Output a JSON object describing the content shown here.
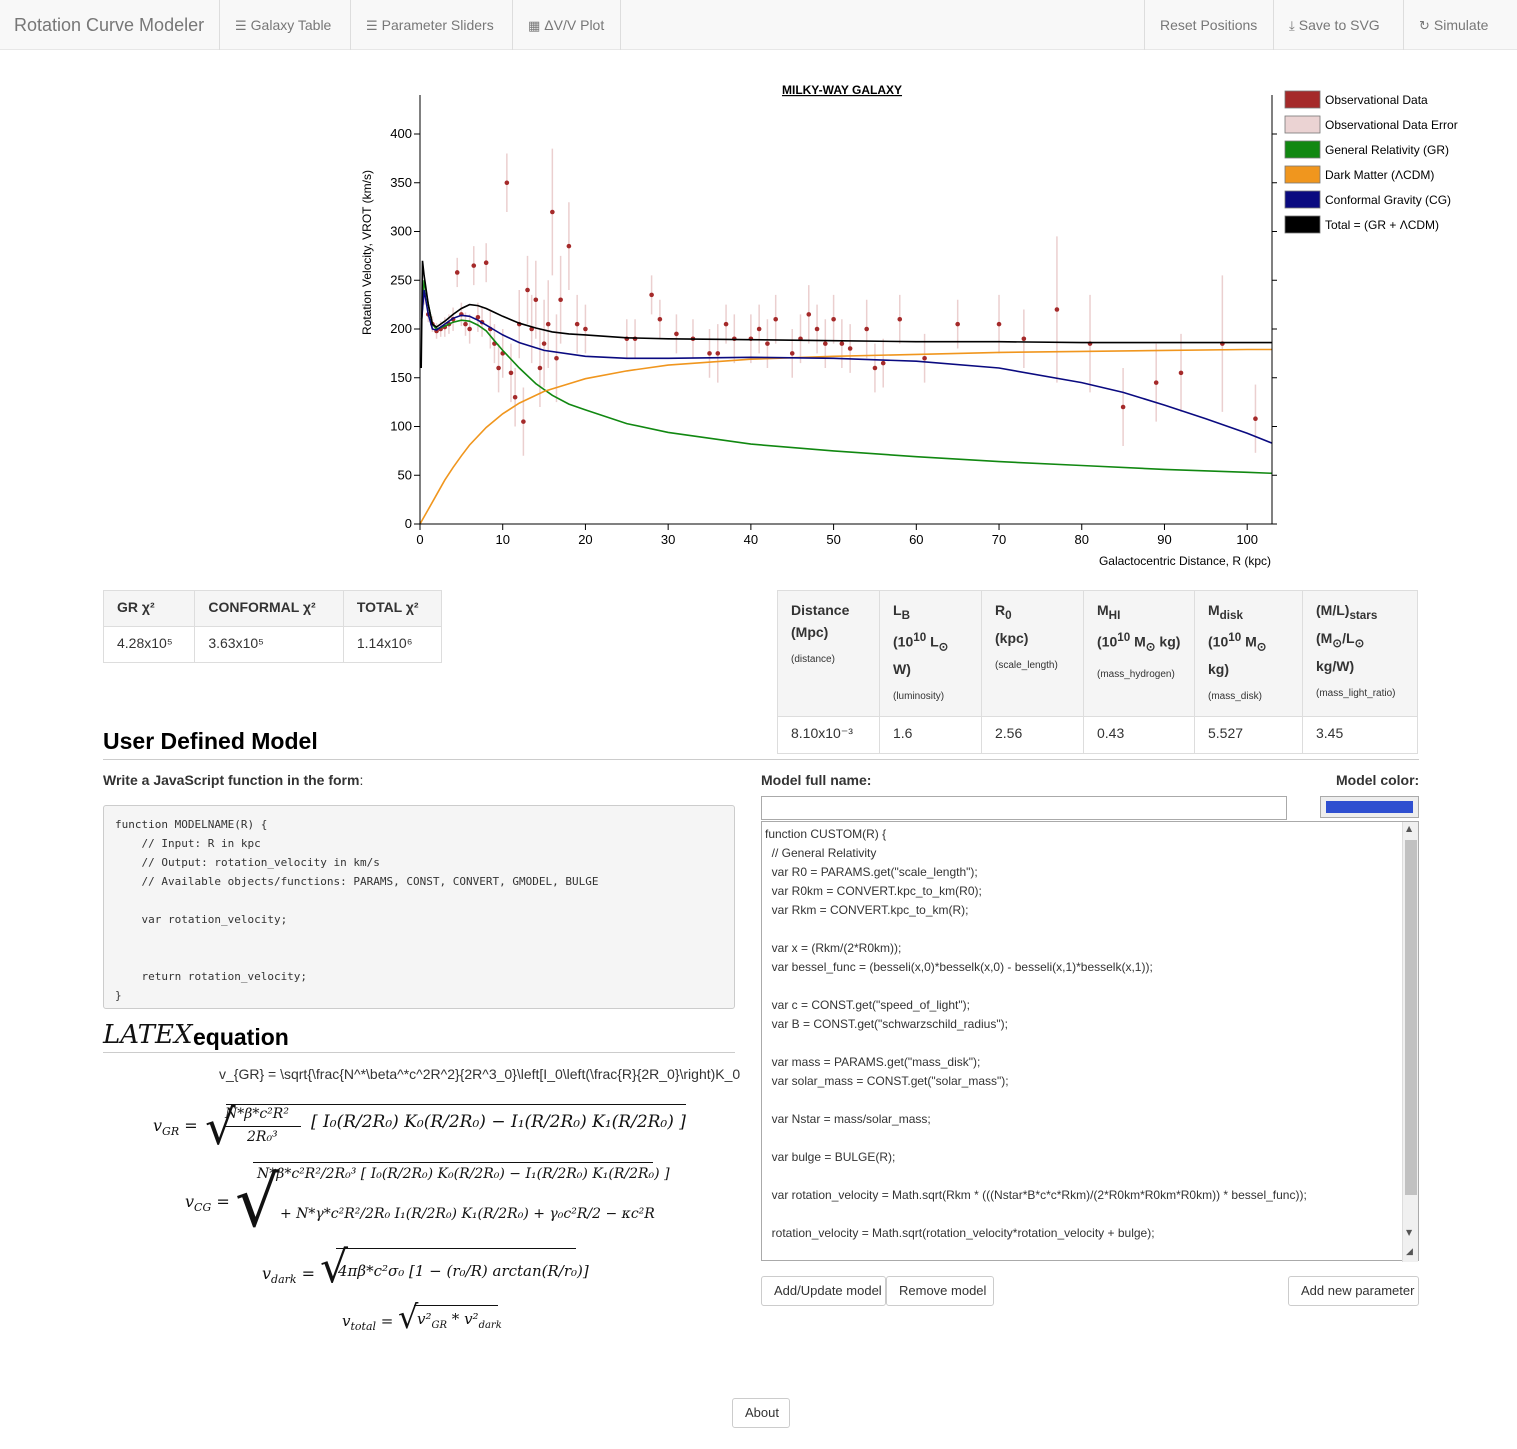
{
  "navbar": {
    "brand": "Rotation Curve Modeler",
    "galaxy_table": "Galaxy Table",
    "parameter_sliders": "Parameter Sliders",
    "dv_plot": "ΔV/V Plot",
    "reset_positions": "Reset Positions",
    "save_svg": "Save to SVG",
    "simulate": "Simulate"
  },
  "chart_data": {
    "type": "line",
    "title": "MILKY-WAY GALAXY",
    "xlabel": "Galactocentric Distance, R (kpc)",
    "ylabel": "Rotation Velocity, VROT (km/s)",
    "xlim": [
      0,
      103
    ],
    "ylim": [
      0,
      440
    ],
    "x_ticks": [
      0,
      10,
      20,
      30,
      40,
      50,
      60,
      70,
      80,
      90,
      100
    ],
    "y_ticks": [
      0,
      50,
      100,
      150,
      200,
      250,
      300,
      350,
      400
    ],
    "legend_position": "right",
    "legend": [
      {
        "label": "Observational Data",
        "color": "#a52a2a"
      },
      {
        "label": "Observational Data Error",
        "color": "#ebd3d3"
      },
      {
        "label": "General Relativity (GR)",
        "color": "#118811"
      },
      {
        "label": "Dark Matter (ΛCDM)",
        "color": "#f0961e"
      },
      {
        "label": "Conformal Gravity (CG)",
        "color": "#0a0a80"
      },
      {
        "label": "Total = (GR + ΛCDM)",
        "color": "#000000"
      }
    ],
    "series": [
      {
        "name": "General Relativity (GR)",
        "color": "#118811",
        "x": [
          0.2,
          0.5,
          1,
          1.5,
          2,
          3,
          4,
          5,
          6,
          7,
          8,
          9,
          10,
          12,
          14,
          16,
          18,
          20,
          25,
          30,
          40,
          50,
          60,
          70,
          80,
          90,
          100,
          103
        ],
        "y": [
          210,
          250,
          225,
          205,
          200,
          203,
          207,
          209,
          208,
          204,
          198,
          188,
          178,
          160,
          144,
          132,
          123,
          117,
          103,
          94,
          82,
          75,
          69,
          64,
          60,
          56,
          53,
          52
        ]
      },
      {
        "name": "Dark Matter (ΛCDM)",
        "color": "#f0961e",
        "x": [
          0,
          1,
          2,
          3,
          4,
          5,
          6,
          8,
          10,
          12,
          15,
          20,
          25,
          30,
          40,
          50,
          60,
          70,
          80,
          90,
          100,
          103
        ],
        "y": [
          0,
          15,
          30,
          45,
          58,
          70,
          81,
          99,
          113,
          124,
          136,
          149,
          157,
          163,
          169,
          172,
          174,
          176,
          177,
          178,
          179,
          179
        ]
      },
      {
        "name": "Conformal Gravity (CG)",
        "color": "#0a0a80",
        "x": [
          0.2,
          0.5,
          1,
          1.5,
          2,
          3,
          4,
          5,
          6,
          7,
          8,
          9,
          10,
          12,
          15,
          20,
          25,
          30,
          40,
          50,
          60,
          70,
          80,
          85,
          90,
          95,
          100,
          103
        ],
        "y": [
          210,
          240,
          215,
          200,
          199,
          205,
          211,
          214,
          213,
          209,
          204,
          199,
          194,
          186,
          178,
          172,
          170,
          170,
          171,
          170,
          167,
          160,
          145,
          135,
          122,
          108,
          93,
          83
        ]
      },
      {
        "name": "Total = (GR + ΛCDM)",
        "color": "#000000",
        "x": [
          0.15,
          0.3,
          0.5,
          1,
          1.5,
          2,
          3,
          4,
          5,
          6,
          7,
          8,
          9,
          10,
          12,
          14,
          16,
          18,
          20,
          25,
          30,
          40,
          50,
          60,
          70,
          80,
          90,
          100,
          103
        ],
        "y": [
          160,
          270,
          255,
          225,
          205,
          202,
          208,
          215,
          221,
          225,
          224,
          221,
          217,
          213,
          206,
          201,
          197,
          195,
          194,
          191,
          190,
          189,
          188,
          187,
          187,
          186,
          186,
          186,
          186
        ]
      }
    ],
    "observations": {
      "x": [
        0.5,
        1,
        1.5,
        2,
        2.5,
        3,
        3.5,
        4,
        4.5,
        5,
        5.5,
        6,
        6.5,
        7,
        7.5,
        8,
        8.5,
        9,
        9.5,
        10,
        10.5,
        11,
        11.5,
        12,
        12.5,
        13,
        13.5,
        14,
        14.5,
        15,
        15.5,
        16,
        16.5,
        17,
        18,
        19,
        20,
        25,
        26,
        28,
        29,
        31,
        33,
        35,
        36,
        37,
        38,
        40,
        41,
        42,
        43,
        45,
        46,
        47,
        48,
        49,
        50,
        51,
        52,
        54,
        55,
        56,
        58,
        61,
        65,
        70,
        73,
        77,
        81,
        85,
        89,
        92,
        97,
        101
      ],
      "y": [
        235,
        215,
        205,
        198,
        200,
        202,
        205,
        210,
        258,
        215,
        205,
        200,
        265,
        212,
        207,
        268,
        200,
        185,
        160,
        175,
        350,
        155,
        130,
        205,
        105,
        240,
        200,
        230,
        160,
        185,
        205,
        320,
        170,
        230,
        285,
        205,
        200,
        190,
        190,
        235,
        210,
        195,
        190,
        175,
        175,
        205,
        190,
        190,
        200,
        185,
        210,
        175,
        190,
        215,
        200,
        185,
        210,
        185,
        180,
        200,
        160,
        165,
        210,
        170,
        205,
        205,
        190,
        220,
        185,
        120,
        145,
        155,
        185,
        108
      ],
      "err": [
        10,
        8,
        8,
        8,
        8,
        10,
        10,
        12,
        15,
        12,
        12,
        15,
        20,
        15,
        15,
        20,
        20,
        20,
        25,
        25,
        30,
        30,
        30,
        35,
        35,
        35,
        35,
        40,
        40,
        45,
        45,
        65,
        45,
        45,
        45,
        30,
        25,
        20,
        20,
        20,
        20,
        20,
        20,
        25,
        30,
        20,
        25,
        25,
        25,
        25,
        25,
        25,
        25,
        30,
        25,
        25,
        25,
        25,
        25,
        30,
        25,
        25,
        25,
        25,
        25,
        30,
        30,
        75,
        50,
        40,
        40,
        40,
        70,
        35
      ]
    }
  },
  "chi_table": {
    "headers": [
      "GR χ²",
      "CONFORMAL χ²",
      "TOTAL χ²"
    ],
    "values": [
      "4.28x10⁵",
      "3.63x10⁵",
      "1.14x10⁶"
    ]
  },
  "param_table": {
    "headers": [
      {
        "l1": "Distance",
        "l2": "(Mpc)",
        "sub": "(distance)"
      },
      {
        "l1": "L_B",
        "l2": "(10^10 L⊙ W)",
        "sub": "(luminosity)"
      },
      {
        "l1": "R0",
        "l2": "(kpc)",
        "sub": "(scale_length)"
      },
      {
        "l1": "M_HI",
        "l2": "(10^10 M⊙ kg)",
        "sub": "(mass_hydrogen)"
      },
      {
        "l1": "M_disk",
        "l2": "(10^10 M⊙ kg)",
        "sub": "(mass_disk)"
      },
      {
        "l1": "(M/L)_stars",
        "l2": "(M⊙/L⊙ kg/W)",
        "sub": "(mass_light_ratio)"
      }
    ],
    "values": [
      "8.10x10⁻³",
      "1.6",
      "2.56",
      "0.43",
      "5.527",
      "3.45"
    ]
  },
  "user_model": {
    "heading": "User Defined Model",
    "write_label": "Write a JavaScript function in the form",
    "write_colon": ":",
    "template_code": "function MODELNAME(R) {\n    // Input: R in kpc\n    // Output: rotation_velocity in km/s\n    // Available objects/functions: PARAMS, CONST, CONVERT, GMODEL, BULGE\n\n    var rotation_velocity;\n\n\n    return rotation_velocity;\n}",
    "latex_logo": "LATEX",
    "latex_word": "equation",
    "latex_source": "v_{GR} = \\sqrt{\\frac{N^*\\beta^*c^2R^2}{2R^3_0}\\left[I_0\\left(\\frac{R}{2R_0}\\right)K_0",
    "model_name_label": "Model full name:",
    "model_color_label": "Model color:",
    "model_name_value": "",
    "model_color": "#2f4fd0",
    "editor_code": "function CUSTOM(R) {\n  // General Relativity\n  var R0 = PARAMS.get(\"scale_length\");\n  var R0km = CONVERT.kpc_to_km(R0);\n  var Rkm = CONVERT.kpc_to_km(R);\n\n  var x = (Rkm/(2*R0km));\n  var bessel_func = (besseli(x,0)*besselk(x,0) - besseli(x,1)*besselk(x,1));\n\n  var c = CONST.get(\"speed_of_light\");\n  var B = CONST.get(\"schwarzschild_radius\");\n\n  var mass = PARAMS.get(\"mass_disk\");\n  var solar_mass = CONST.get(\"solar_mass\");\n\n  var Nstar = mass/solar_mass;\n\n  var bulge = BULGE(R);\n\n  var rotation_velocity = Math.sqrt(Rkm * (((Nstar*B*c*c*Rkm)/(2*R0km*R0km*R0km)) * bessel_func));\n\n  rotation_velocity = Math.sqrt(rotation_velocity*rotation_velocity + bulge);",
    "add_update": "Add/Update model",
    "remove": "Remove model",
    "add_param": "Add new parameter"
  },
  "footer": {
    "about": "About"
  }
}
